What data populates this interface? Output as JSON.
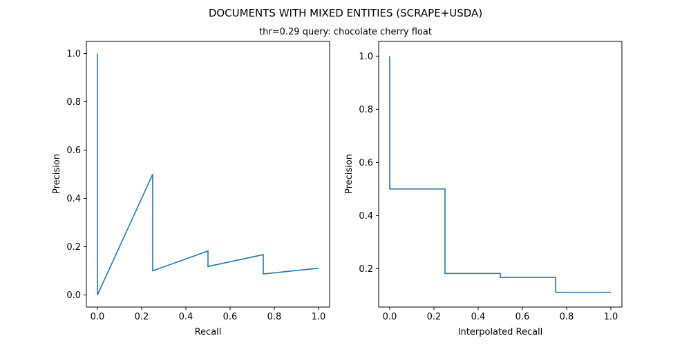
{
  "figure": {
    "title": "DOCUMENTS WITH MIXED ENTITIES (SCRAPE+USDA)",
    "subtitle": "thr=0.29    query: chocolate cherry float"
  },
  "colors": {
    "series": "#1f77b4",
    "axes": "#000000"
  },
  "chart_data": [
    {
      "type": "line",
      "xlabel": "Recall",
      "ylabel": "Precision",
      "xlim": [
        -0.05,
        1.05
      ],
      "ylim": [
        -0.05,
        1.05
      ],
      "xticks": [
        0.0,
        0.2,
        0.4,
        0.6,
        0.8,
        1.0
      ],
      "yticks": [
        0.0,
        0.2,
        0.4,
        0.6,
        0.8,
        1.0
      ],
      "series": [
        {
          "x": [
            0.0,
            0.0,
            0.25,
            0.25,
            0.5,
            0.5,
            0.75,
            0.75,
            1.0
          ],
          "y": [
            1.0,
            0.0,
            0.5,
            0.1,
            0.182,
            0.118,
            0.167,
            0.087,
            0.111
          ]
        }
      ]
    },
    {
      "type": "line",
      "xlabel": "Interpolated Recall",
      "ylabel": "Precision",
      "xlim": [
        -0.05,
        1.05
      ],
      "ylim": [
        0.0555,
        1.0555
      ],
      "xticks": [
        0.0,
        0.2,
        0.4,
        0.6,
        0.8,
        1.0
      ],
      "yticks": [
        0.2,
        0.4,
        0.6,
        0.8,
        1.0
      ],
      "series": [
        {
          "x": [
            0.0,
            0.0,
            0.25,
            0.25,
            0.5,
            0.5,
            0.75,
            0.75,
            1.0
          ],
          "y": [
            1.0,
            0.5,
            0.5,
            0.182,
            0.182,
            0.167,
            0.167,
            0.111,
            0.111
          ]
        }
      ]
    }
  ]
}
